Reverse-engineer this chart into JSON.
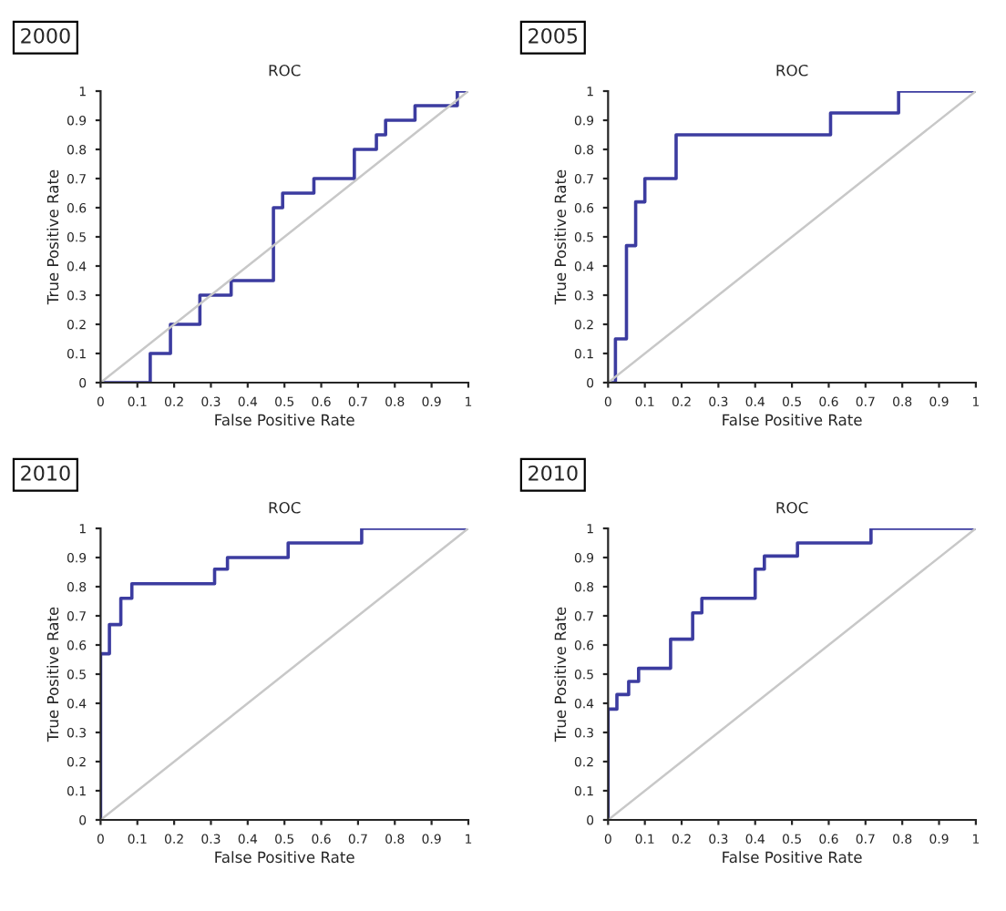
{
  "chart_data": [
    {
      "type": "step",
      "title": "ROC",
      "xlabel": "False Positive Rate",
      "ylabel": "True Positive Rate",
      "annotations": [
        "2000"
      ],
      "xlim": [
        0,
        1
      ],
      "ylim": [
        0,
        1
      ],
      "xticks": [
        0,
        0.1,
        0.2,
        0.3,
        0.4,
        0.5,
        0.6,
        0.7,
        0.8,
        0.9,
        1
      ],
      "yticks": [
        0,
        0.1,
        0.2,
        0.3,
        0.4,
        0.5,
        0.6,
        0.7,
        0.8,
        0.9,
        1
      ],
      "series": [
        {
          "color": "#3c3ca0",
          "x": [
            0,
            0.135,
            0.19,
            0.27,
            0.355,
            0.47,
            0.495,
            0.58,
            0.69,
            0.75,
            0.775,
            0.855,
            0.97,
            1
          ],
          "values": [
            0,
            0.1,
            0.2,
            0.3,
            0.35,
            0.6,
            0.65,
            0.7,
            0.8,
            0.85,
            0.9,
            0.95,
            1,
            1
          ]
        },
        {
          "type": "line",
          "color": "#c8c8c8",
          "x": [
            0,
            1
          ],
          "values": [
            0,
            1
          ]
        }
      ]
    },
    {
      "type": "step",
      "title": "ROC",
      "xlabel": "False Positive Rate",
      "ylabel": "True Positive Rate",
      "annotations": [
        "2005"
      ],
      "xlim": [
        0,
        1
      ],
      "ylim": [
        0,
        1
      ],
      "xticks": [
        0,
        0.1,
        0.2,
        0.3,
        0.4,
        0.5,
        0.6,
        0.7,
        0.8,
        0.9,
        1
      ],
      "yticks": [
        0,
        0.1,
        0.2,
        0.3,
        0.4,
        0.5,
        0.6,
        0.7,
        0.8,
        0.9,
        1
      ],
      "series": [
        {
          "color": "#3c3ca0",
          "x": [
            0,
            0.02,
            0.05,
            0.075,
            0.1,
            0.185,
            0.605,
            0.79,
            1
          ],
          "values": [
            0,
            0.15,
            0.47,
            0.62,
            0.7,
            0.85,
            0.925,
            1,
            1
          ]
        },
        {
          "type": "line",
          "color": "#c8c8c8",
          "x": [
            0,
            1
          ],
          "values": [
            0,
            1
          ]
        }
      ]
    },
    {
      "type": "step",
      "title": "ROC",
      "xlabel": "False Positive Rate",
      "ylabel": "True Positive Rate",
      "annotations": [
        "2010"
      ],
      "xlim": [
        0,
        1
      ],
      "ylim": [
        0,
        1
      ],
      "xticks": [
        0,
        0.1,
        0.2,
        0.3,
        0.4,
        0.5,
        0.6,
        0.7,
        0.8,
        0.9,
        1
      ],
      "yticks": [
        0,
        0.1,
        0.2,
        0.3,
        0.4,
        0.5,
        0.6,
        0.7,
        0.8,
        0.9,
        1
      ],
      "series": [
        {
          "color": "#3c3ca0",
          "x": [
            0,
            0,
            0.024,
            0.055,
            0.085,
            0.31,
            0.345,
            0.51,
            0.71,
            1
          ],
          "values": [
            0,
            0.57,
            0.67,
            0.76,
            0.81,
            0.86,
            0.9,
            0.95,
            1,
            1
          ]
        },
        {
          "type": "line",
          "color": "#c8c8c8",
          "x": [
            0,
            1
          ],
          "values": [
            0,
            1
          ]
        }
      ]
    },
    {
      "type": "step",
      "title": "ROC",
      "xlabel": "False Positive Rate",
      "ylabel": "True Positive Rate",
      "annotations": [
        "2010"
      ],
      "xlim": [
        0,
        1
      ],
      "ylim": [
        0,
        1
      ],
      "xticks": [
        0,
        0.1,
        0.2,
        0.3,
        0.4,
        0.5,
        0.6,
        0.7,
        0.8,
        0.9,
        1
      ],
      "yticks": [
        0,
        0.1,
        0.2,
        0.3,
        0.4,
        0.5,
        0.6,
        0.7,
        0.8,
        0.9,
        1
      ],
      "series": [
        {
          "color": "#3c3ca0",
          "x": [
            0,
            0,
            0.024,
            0.056,
            0.083,
            0.17,
            0.23,
            0.255,
            0.4,
            0.425,
            0.515,
            0.715,
            1
          ],
          "values": [
            0,
            0.38,
            0.43,
            0.475,
            0.52,
            0.62,
            0.71,
            0.76,
            0.86,
            0.905,
            0.95,
            1,
            1
          ]
        },
        {
          "type": "line",
          "color": "#c8c8c8",
          "x": [
            0,
            1
          ],
          "values": [
            0,
            1
          ]
        }
      ]
    }
  ]
}
